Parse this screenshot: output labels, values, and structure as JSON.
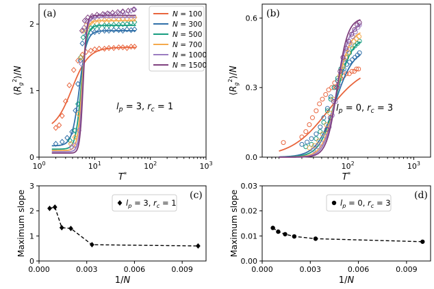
{
  "colors": {
    "N100": "#e8643c",
    "N300": "#2f6fa8",
    "N500": "#159c7e",
    "N700": "#f4a94c",
    "N1000": "#9a7bc0",
    "N1500": "#7e3f7e",
    "black": "#000000"
  },
  "chart_data": [
    {
      "panel": "(a)",
      "type": "line",
      "xscale": "log",
      "xlim": [
        1,
        1000
      ],
      "ylim": [
        0,
        2.3
      ],
      "xlabel": "T*",
      "ylabel": "⟨R_g^2⟩/N",
      "xticks": [
        "10^0",
        "10^1",
        "10^2",
        "10^3"
      ],
      "yticks": [
        0,
        1,
        2
      ],
      "annotation": "l_p = 3,  r_c = 1",
      "legend_position": "top-right",
      "series": [
        {
          "name": "N = 100",
          "low": 0.4,
          "high": 1.65,
          "Tc": 3.9,
          "width": 0.15,
          "points": [
            [
              2.0,
              0.44
            ],
            [
              2.3,
              0.48
            ],
            [
              2.6,
              0.62
            ],
            [
              3.0,
              0.84
            ],
            [
              3.5,
              1.08
            ],
            [
              4.2,
              1.31
            ],
            [
              5.0,
              1.45
            ],
            [
              6.0,
              1.54
            ],
            [
              7.0,
              1.58
            ],
            [
              8.5,
              1.6
            ],
            [
              10,
              1.62
            ],
            [
              12,
              1.63
            ],
            [
              15,
              1.63
            ],
            [
              18,
              1.64
            ],
            [
              22,
              1.64
            ],
            [
              27,
              1.65
            ],
            [
              32,
              1.65
            ],
            [
              38,
              1.64
            ],
            [
              45,
              1.66
            ],
            [
              52,
              1.66
            ]
          ]
        },
        {
          "name": "N = 300",
          "low": 0.17,
          "high": 1.9,
          "Tc": 5.3,
          "width": 0.065,
          "points": [
            [
              2.0,
              0.2
            ],
            [
              2.6,
              0.23
            ],
            [
              3.2,
              0.29
            ],
            [
              3.9,
              0.38
            ],
            [
              4.5,
              0.7
            ],
            [
              5.0,
              1.1
            ],
            [
              5.5,
              1.45
            ],
            [
              6.0,
              1.71
            ],
            [
              7.0,
              1.83
            ],
            [
              8.5,
              1.87
            ],
            [
              10,
              1.88
            ],
            [
              12,
              1.89
            ],
            [
              15,
              1.9
            ],
            [
              18,
              1.9
            ],
            [
              22,
              1.91
            ],
            [
              27,
              1.91
            ],
            [
              32,
              1.9
            ],
            [
              38,
              1.92
            ],
            [
              45,
              1.91
            ],
            [
              52,
              1.92
            ]
          ]
        },
        {
          "name": "N = 500",
          "low": 0.12,
          "high": 1.98,
          "Tc": 5.7,
          "width": 0.05,
          "points": [
            [
              3.6,
              0.25
            ],
            [
              4.4,
              0.4
            ],
            [
              5.0,
              0.8
            ],
            [
              5.6,
              1.5
            ],
            [
              6.2,
              1.8
            ],
            [
              7.0,
              1.9
            ],
            [
              8.5,
              1.94
            ],
            [
              10,
              1.96
            ],
            [
              12,
              1.97
            ],
            [
              15,
              1.98
            ],
            [
              18,
              1.98
            ],
            [
              22,
              1.99
            ],
            [
              27,
              1.99
            ],
            [
              32,
              2.0
            ],
            [
              38,
              2.0
            ],
            [
              45,
              2.02
            ],
            [
              52,
              2.03
            ]
          ]
        },
        {
          "name": "N = 700",
          "low": 0.1,
          "high": 2.05,
          "Tc": 5.9,
          "width": 0.04,
          "points": [
            [
              3.7,
              0.2
            ],
            [
              4.4,
              0.3
            ],
            [
              5.1,
              0.65
            ],
            [
              5.7,
              1.5
            ],
            [
              6.3,
              1.9
            ],
            [
              7.0,
              1.98
            ],
            [
              8.5,
              2.02
            ],
            [
              10,
              2.04
            ],
            [
              12,
              2.05
            ],
            [
              15,
              2.06
            ],
            [
              18,
              2.06
            ],
            [
              22,
              2.07
            ],
            [
              27,
              2.07
            ],
            [
              32,
              2.08
            ],
            [
              38,
              2.08
            ],
            [
              45,
              2.09
            ],
            [
              52,
              2.1
            ]
          ]
        },
        {
          "name": "N = 1000",
          "low": 0.08,
          "high": 2.1,
          "Tc": 6.1,
          "width": 0.035,
          "points": [
            [
              3.8,
              0.15
            ],
            [
              4.4,
              0.18
            ],
            [
              5.2,
              0.4
            ],
            [
              5.8,
              1.4
            ],
            [
              6.5,
              1.95
            ],
            [
              7.2,
              2.05
            ],
            [
              8.5,
              2.08
            ],
            [
              10,
              2.1
            ],
            [
              12,
              2.12
            ],
            [
              15,
              2.14
            ],
            [
              18,
              2.15
            ],
            [
              22,
              2.13
            ],
            [
              27,
              2.16
            ],
            [
              32,
              2.18
            ],
            [
              38,
              2.15
            ],
            [
              45,
              2.2
            ],
            [
              52,
              2.22
            ]
          ]
        },
        {
          "name": "N = 1500",
          "low": 0.06,
          "high": 2.13,
          "Tc": 6.2,
          "width": 0.03,
          "points": [
            [
              5.9,
              1.9
            ],
            [
              6.6,
              2.05
            ],
            [
              7.5,
              2.1
            ],
            [
              9,
              2.12
            ],
            [
              11,
              2.14
            ],
            [
              14,
              2.15
            ],
            [
              17,
              2.16
            ],
            [
              21,
              2.17
            ],
            [
              26,
              2.18
            ],
            [
              32,
              2.19
            ],
            [
              40,
              2.2
            ],
            [
              50,
              2.22
            ]
          ]
        }
      ]
    },
    {
      "panel": "(b)",
      "type": "line",
      "xscale": "log",
      "xlim": [
        5,
        1800
      ],
      "ylim": [
        0,
        0.66
      ],
      "xlabel": "T*",
      "ylabel": "⟨R_g^2⟩/N",
      "xticks": [
        "10^2",
        "10^3"
      ],
      "yticks": [
        0.0,
        0.3,
        0.6
      ],
      "annotation": "l_p = 0,  r_c = 3",
      "series": [
        {
          "name": "N = 100",
          "low": 0.0,
          "high": 0.4,
          "Tc": 50,
          "width": 0.28,
          "points": [
            [
              10.5,
              0.063
            ],
            [
              20,
              0.087
            ],
            [
              23,
              0.11
            ],
            [
              26,
              0.14
            ],
            [
              29,
              0.17
            ],
            [
              33,
              0.2
            ],
            [
              37,
              0.23
            ],
            [
              41,
              0.25
            ],
            [
              46,
              0.27
            ],
            [
              51,
              0.29
            ],
            [
              57,
              0.3
            ],
            [
              63,
              0.32
            ],
            [
              70,
              0.33
            ],
            [
              78,
              0.34
            ],
            [
              86,
              0.35
            ],
            [
              95,
              0.36
            ],
            [
              105,
              0.36
            ],
            [
              115,
              0.37
            ],
            [
              125,
              0.37
            ],
            [
              135,
              0.38
            ],
            [
              145,
              0.38
            ]
          ]
        },
        {
          "name": "N = 300",
          "low": 0.0,
          "high": 0.47,
          "Tc": 64,
          "width": 0.14,
          "points": [
            [
              20,
              0.055
            ],
            [
              24,
              0.065
            ],
            [
              28,
              0.08
            ],
            [
              33,
              0.1
            ],
            [
              38,
              0.13
            ],
            [
              43,
              0.17
            ],
            [
              49,
              0.21
            ],
            [
              55,
              0.26
            ],
            [
              62,
              0.3
            ],
            [
              70,
              0.33
            ],
            [
              78,
              0.36
            ],
            [
              87,
              0.38
            ],
            [
              96,
              0.4
            ],
            [
              106,
              0.41
            ],
            [
              117,
              0.42
            ],
            [
              128,
              0.43
            ],
            [
              140,
              0.44
            ],
            [
              150,
              0.45
            ]
          ]
        },
        {
          "name": "N = 500",
          "low": 0.0,
          "high": 0.52,
          "Tc": 66,
          "width": 0.12,
          "points": [
            [
              23,
              0.045
            ],
            [
              28,
              0.055
            ],
            [
              33,
              0.08
            ],
            [
              38,
              0.11
            ],
            [
              43,
              0.15
            ],
            [
              49,
              0.2
            ],
            [
              55,
              0.25
            ],
            [
              62,
              0.3
            ],
            [
              70,
              0.34
            ],
            [
              78,
              0.38
            ],
            [
              87,
              0.41
            ],
            [
              96,
              0.43
            ],
            [
              106,
              0.45
            ],
            [
              117,
              0.47
            ],
            [
              128,
              0.48
            ],
            [
              140,
              0.49
            ],
            [
              150,
              0.5
            ]
          ]
        },
        {
          "name": "N = 700",
          "low": 0.0,
          "high": 0.55,
          "Tc": 67,
          "width": 0.1,
          "points": [
            [
              26,
              0.04
            ],
            [
              31,
              0.05
            ],
            [
              36,
              0.07
            ],
            [
              41,
              0.1
            ],
            [
              47,
              0.14
            ],
            [
              53,
              0.19
            ],
            [
              60,
              0.25
            ],
            [
              67,
              0.3
            ],
            [
              75,
              0.35
            ],
            [
              83,
              0.39
            ],
            [
              92,
              0.43
            ],
            [
              102,
              0.45
            ],
            [
              112,
              0.48
            ],
            [
              123,
              0.5
            ],
            [
              135,
              0.51
            ],
            [
              148,
              0.52
            ]
          ]
        },
        {
          "name": "N = 1000",
          "low": 0.0,
          "high": 0.58,
          "Tc": 68,
          "width": 0.09,
          "points": [
            [
              30,
              0.03
            ],
            [
              35,
              0.045
            ],
            [
              40,
              0.06
            ],
            [
              46,
              0.09
            ],
            [
              52,
              0.13
            ],
            [
              58,
              0.18
            ],
            [
              65,
              0.24
            ],
            [
              72,
              0.31
            ],
            [
              80,
              0.37
            ],
            [
              88,
              0.42
            ],
            [
              97,
              0.46
            ],
            [
              107,
              0.49
            ],
            [
              118,
              0.52
            ],
            [
              130,
              0.54
            ],
            [
              142,
              0.56
            ],
            [
              150,
              0.57
            ]
          ]
        },
        {
          "name": "N = 1500",
          "low": 0.0,
          "high": 0.6,
          "Tc": 69,
          "width": 0.08,
          "points": [
            [
              48,
              0.12
            ],
            [
              54,
              0.17
            ],
            [
              61,
              0.24
            ],
            [
              68,
              0.3
            ],
            [
              76,
              0.37
            ],
            [
              84,
              0.43
            ],
            [
              93,
              0.47
            ],
            [
              103,
              0.5
            ],
            [
              114,
              0.53
            ],
            [
              126,
              0.55
            ],
            [
              138,
              0.57
            ],
            [
              150,
              0.58
            ]
          ]
        }
      ]
    },
    {
      "panel": "(c)",
      "type": "line",
      "xlim": [
        0,
        0.0105
      ],
      "ylim": [
        0,
        3
      ],
      "xlabel": "1/N",
      "ylabel": "Maximum slope",
      "xticks": [
        0.0,
        0.003,
        0.006,
        0.009
      ],
      "xtick_labels": [
        "0.000",
        "0.003",
        "0.006",
        "0.009"
      ],
      "yticks": [
        0,
        1,
        2,
        3
      ],
      "legend": "l_p = 3,  r_c = 1",
      "marker": "diamond",
      "x": [
        0.000667,
        0.001,
        0.00143,
        0.002,
        0.00333,
        0.01
      ],
      "y": [
        2.1,
        2.15,
        1.33,
        1.3,
        0.65,
        0.6
      ]
    },
    {
      "panel": "(d)",
      "type": "line",
      "xlim": [
        0,
        0.0105
      ],
      "ylim": [
        0,
        0.03
      ],
      "xlabel": "1/N",
      "ylabel": "Maximum slope",
      "xticks": [
        0.0,
        0.003,
        0.006,
        0.009
      ],
      "xtick_labels": [
        "0.000",
        "0.003",
        "0.006",
        "0.009"
      ],
      "yticks": [
        0.0,
        0.01,
        0.02,
        0.03
      ],
      "ytick_labels": [
        "0.00",
        "0.01",
        "0.02",
        "0.03"
      ],
      "legend": "l_p = 0,  r_c = 3",
      "marker": "circle",
      "x": [
        0.000667,
        0.001,
        0.00143,
        0.002,
        0.00333,
        0.01
      ],
      "y": [
        0.0132,
        0.0117,
        0.0107,
        0.0098,
        0.0089,
        0.0077
      ]
    }
  ]
}
